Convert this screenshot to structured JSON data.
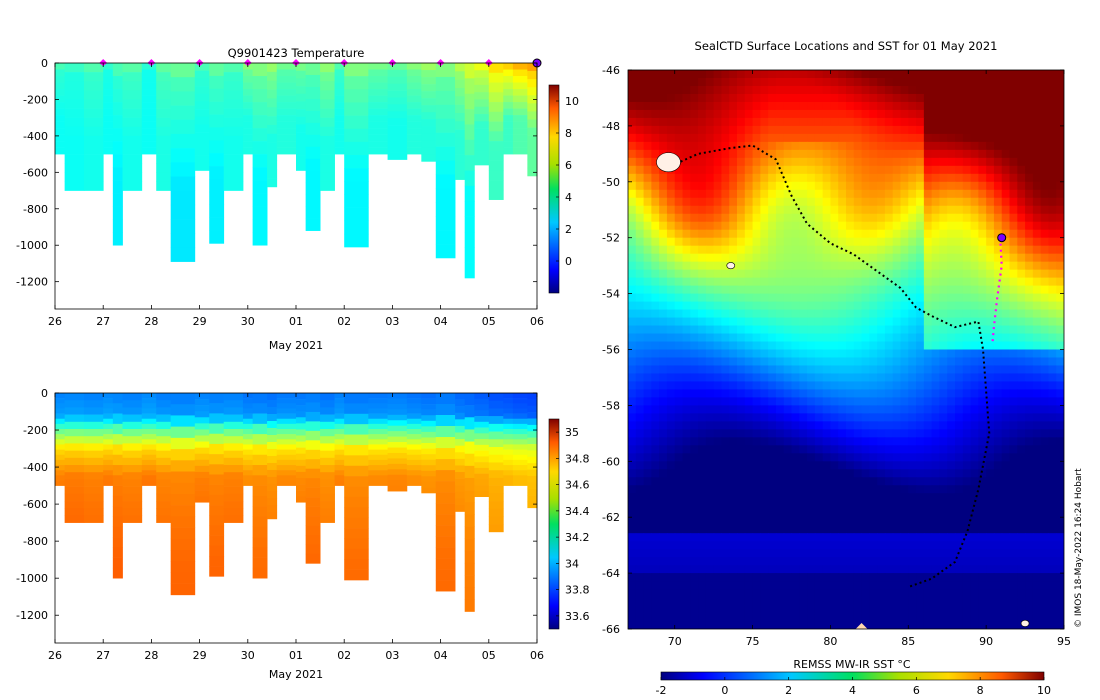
{
  "chart_data": [
    {
      "type": "heatmap",
      "title": "Q9901423  Temperature",
      "xlabel": "May 2021",
      "ylabel": "",
      "x_tick_labels": [
        "26",
        "27",
        "28",
        "29",
        "30",
        "01",
        "02",
        "03",
        "04",
        "05",
        "06"
      ],
      "y_tick_labels": [
        "0",
        "-200",
        "-400",
        "-600",
        "-800",
        "-1000",
        "-1200"
      ],
      "ylim": [
        -1350,
        0
      ],
      "colorbar": {
        "min": -2,
        "max": 11,
        "tick_labels": [
          "0",
          "2",
          "4",
          "6",
          "8",
          "10"
        ],
        "colormap": "jet"
      },
      "profiles": [
        {
          "day": 26.0,
          "depth": 500,
          "surface": 3.5,
          "deep": 3.0
        },
        {
          "day": 26.2,
          "depth": 700,
          "surface": 3.3,
          "deep": 3.0
        },
        {
          "day": 26.6,
          "depth": 700,
          "surface": 3.6,
          "deep": 3.1
        },
        {
          "day": 27.0,
          "depth": 500,
          "surface": 3.2,
          "deep": 3.0
        },
        {
          "day": 27.2,
          "depth": 1000,
          "surface": 3.5,
          "deep": 2.7
        },
        {
          "day": 27.4,
          "depth": 700,
          "surface": 3.7,
          "deep": 3.1
        },
        {
          "day": 27.8,
          "depth": 500,
          "surface": 3.1,
          "deep": 3.0
        },
        {
          "day": 28.1,
          "depth": 700,
          "surface": 3.8,
          "deep": 3.2
        },
        {
          "day": 28.4,
          "depth": 1090,
          "surface": 3.9,
          "deep": 2.6
        },
        {
          "day": 28.9,
          "depth": 590,
          "surface": 3.5,
          "deep": 3.1
        },
        {
          "day": 29.2,
          "depth": 990,
          "surface": 3.8,
          "deep": 2.7
        },
        {
          "day": 29.5,
          "depth": 700,
          "surface": 3.6,
          "deep": 3.1
        },
        {
          "day": 29.9,
          "depth": 500,
          "surface": 4.3,
          "deep": 3.2
        },
        {
          "day": 30.1,
          "depth": 1000,
          "surface": 4.2,
          "deep": 2.8
        },
        {
          "day": 30.4,
          "depth": 680,
          "surface": 4.5,
          "deep": 3.2
        },
        {
          "day": 30.6,
          "depth": 500,
          "surface": 4.0,
          "deep": 3.3
        },
        {
          "day": 31.0,
          "depth": 590,
          "surface": 4.1,
          "deep": 3.1
        },
        {
          "day": 31.2,
          "depth": 920,
          "surface": 3.9,
          "deep": 2.8
        },
        {
          "day": 31.5,
          "depth": 700,
          "surface": 4.4,
          "deep": 3.2
        },
        {
          "day": 31.8,
          "depth": 500,
          "surface": 3.6,
          "deep": 3.1
        },
        {
          "day": 32.0,
          "depth": 1010,
          "surface": 4.2,
          "deep": 2.8
        },
        {
          "day": 32.5,
          "depth": 500,
          "surface": 4.1,
          "deep": 3.2
        },
        {
          "day": 32.9,
          "depth": 530,
          "surface": 3.9,
          "deep": 3.1
        },
        {
          "day": 33.3,
          "depth": 500,
          "surface": 4.3,
          "deep": 3.3
        },
        {
          "day": 33.6,
          "depth": 540,
          "surface": 4.6,
          "deep": 3.3
        },
        {
          "day": 33.9,
          "depth": 1070,
          "surface": 4.2,
          "deep": 2.8
        },
        {
          "day": 34.3,
          "depth": 640,
          "surface": 4.9,
          "deep": 3.4
        },
        {
          "day": 34.5,
          "depth": 1180,
          "surface": 5.2,
          "deep": 2.9
        },
        {
          "day": 34.7,
          "depth": 560,
          "surface": 5.6,
          "deep": 3.5
        },
        {
          "day": 35.0,
          "depth": 750,
          "surface": 6.2,
          "deep": 3.6
        },
        {
          "day": 35.3,
          "depth": 500,
          "surface": 6.4,
          "deep": 3.6
        },
        {
          "day": 35.5,
          "depth": 500,
          "surface": 6.8,
          "deep": 3.9
        },
        {
          "day": 35.8,
          "depth": 620,
          "surface": 7.0,
          "deep": 4.1
        }
      ],
      "surfacing_markers": [
        27,
        28,
        29,
        30,
        31,
        32,
        33,
        34,
        35
      ]
    },
    {
      "type": "heatmap",
      "title": "",
      "xlabel": "May 2021",
      "ylabel": "",
      "x_tick_labels": [
        "26",
        "27",
        "28",
        "29",
        "30",
        "01",
        "02",
        "03",
        "04",
        "05",
        "06"
      ],
      "y_tick_labels": [
        "0",
        "-200",
        "-400",
        "-600",
        "-800",
        "-1000",
        "-1200"
      ],
      "ylim": [
        -1350,
        0
      ],
      "colorbar": {
        "min": 33.5,
        "max": 35.1,
        "tick_labels": [
          "33.6",
          "33.8",
          "34",
          "34.2",
          "34.4",
          "34.6",
          "34.8",
          "35"
        ],
        "colormap": "jet"
      },
      "value_by_depth": [
        [
          0,
          33.9
        ],
        [
          120,
          33.95
        ],
        [
          200,
          34.25
        ],
        [
          300,
          34.55
        ],
        [
          450,
          34.7
        ],
        [
          600,
          34.72
        ],
        [
          900,
          34.75
        ],
        [
          1200,
          34.76
        ]
      ]
    },
    {
      "type": "heatmap",
      "title": "SealCTD Surface Locations and SST for 01 May 2021",
      "xlabel": "",
      "ylabel": "",
      "x_tick_labels": [
        "70",
        "75",
        "80",
        "85",
        "90",
        "95"
      ],
      "y_tick_labels": [
        "-46",
        "-48",
        "-50",
        "-52",
        "-54",
        "-56",
        "-58",
        "-60",
        "-62",
        "-64",
        "-66"
      ],
      "xlim": [
        67,
        95
      ],
      "ylim": [
        -66,
        -46
      ],
      "colorbar": {
        "label": "REMSS MW-IR SST °C",
        "min": -2,
        "max": 10,
        "tick_labels": [
          "-2",
          "0",
          "2",
          "4",
          "6",
          "8",
          "10"
        ],
        "colormap": "jet"
      },
      "track": [
        [
          69.5,
          -49.5
        ],
        [
          71.5,
          -49.0
        ],
        [
          73.5,
          -48.8
        ],
        [
          75,
          -48.7
        ],
        [
          76.5,
          -49.2
        ],
        [
          77.5,
          -50.5
        ],
        [
          78.5,
          -51.5
        ],
        [
          80,
          -52.2
        ],
        [
          81.5,
          -52.6
        ],
        [
          83,
          -53.2
        ],
        [
          84.5,
          -53.8
        ],
        [
          85.5,
          -54.5
        ],
        [
          86.5,
          -54.8
        ],
        [
          88,
          -55.2
        ],
        [
          89.5,
          -55.0
        ],
        [
          89.8,
          -56
        ],
        [
          90,
          -57.5
        ],
        [
          90.2,
          -59
        ],
        [
          89.5,
          -61
        ],
        [
          88.8,
          -62.5
        ],
        [
          88,
          -63.6
        ],
        [
          86.5,
          -64.2
        ],
        [
          85,
          -64.5
        ]
      ],
      "recent_track": [
        [
          90.9,
          -52.0
        ],
        [
          91.0,
          -53.0
        ],
        [
          90.7,
          -54.2
        ],
        [
          90.5,
          -55.2
        ],
        [
          90.4,
          -55.8
        ]
      ],
      "latest_position": [
        91.0,
        -52.0
      ],
      "land": [
        [
          69.6,
          -49.3
        ],
        [
          73.6,
          -53.0
        ],
        [
          92.5,
          -65.8
        ]
      ],
      "credit": "© IMOS 18-May-2022 16:24 Hobart"
    }
  ]
}
